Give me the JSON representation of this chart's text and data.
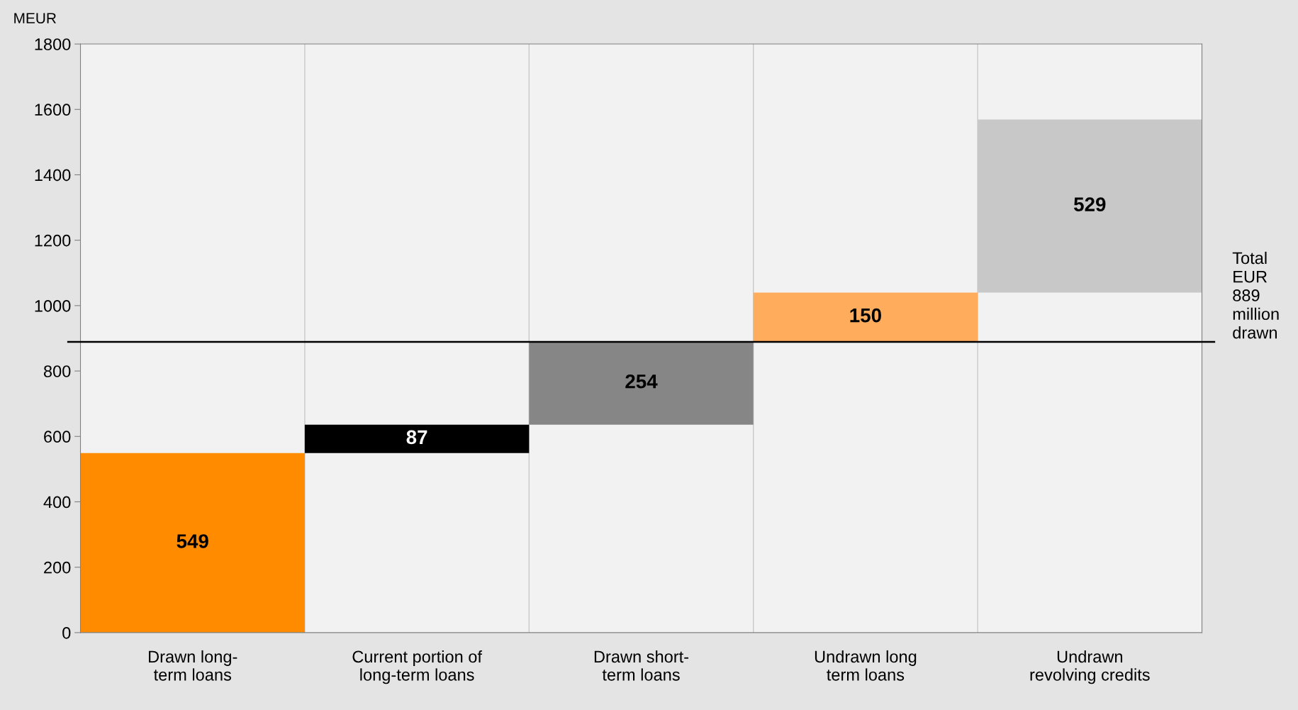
{
  "chart_data": {
    "type": "bar",
    "ylabel": "MEUR",
    "categories": [
      "Drawn long-\nterm loans",
      "Current portion of\nlong-term loans",
      "Drawn short-\nterm loans",
      "Undrawn long\nterm loans",
      "Undrawn\nrevolving credits"
    ],
    "values": [
      549,
      87,
      254,
      150,
      529
    ],
    "base": [
      0,
      549,
      636,
      890,
      1040
    ],
    "colors": [
      "#ff8c00",
      "#000000",
      "#868686",
      "#ffad5c",
      "#c8c8c8"
    ],
    "data_labels": true,
    "ylim": [
      0,
      1800
    ],
    "yticks": [
      0,
      200,
      400,
      600,
      800,
      1000,
      1200,
      1400,
      1600,
      1800
    ],
    "grid": "x",
    "ref_lines": [
      {
        "axis": "y",
        "value": 889,
        "label": "Total EUR 889 million drawn",
        "color": "#000000"
      }
    ]
  }
}
